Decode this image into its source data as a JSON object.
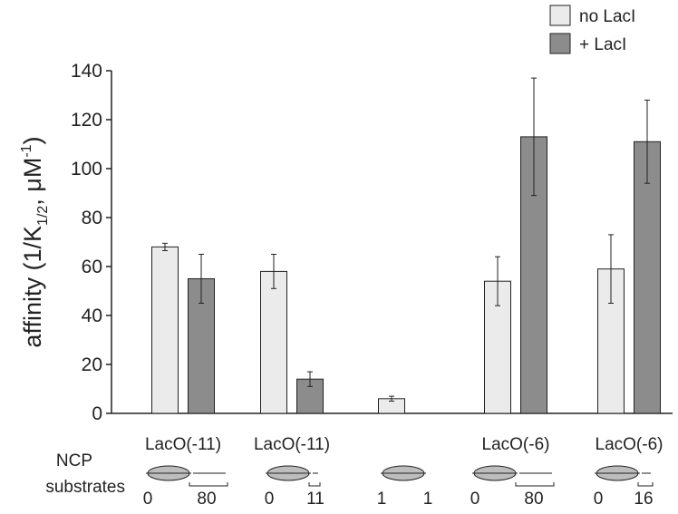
{
  "chart_data": {
    "type": "bar",
    "title": "",
    "xlabel": "",
    "ylabel": "affinity (1/K",
    "ylabel_sub": "1/2",
    "ylabel_mid": ", μM",
    "ylabel_sup": "-1",
    "ylabel_end": ")",
    "ylim": [
      0,
      140
    ],
    "yticks": [
      0,
      20,
      40,
      60,
      80,
      100,
      120,
      140
    ],
    "categories": [
      "LacO(-11)",
      "LacO(-11)",
      "",
      "LacO(-6)",
      "LacO(-6)"
    ],
    "series": [
      {
        "name": "no LacI",
        "color": "#ebebeb",
        "values": [
          68,
          58,
          6,
          54,
          59
        ],
        "errors": [
          1.5,
          7,
          1,
          10,
          14
        ]
      },
      {
        "name": "+ LacI",
        "color": "#8c8c8c",
        "values": [
          55,
          14,
          0,
          113,
          111
        ],
        "errors": [
          10,
          3,
          0,
          24,
          17
        ]
      }
    ],
    "missing": [
      [
        false,
        false,
        false,
        false,
        false
      ],
      [
        false,
        false,
        true,
        false,
        false
      ]
    ],
    "legend_position": "top-right",
    "substrates_label": [
      "NCP",
      "substrates"
    ],
    "substrate_numbers": [
      [
        "0",
        "80"
      ],
      [
        "0",
        "11"
      ],
      [
        "1",
        "1"
      ],
      [
        "0",
        "80"
      ],
      [
        "0",
        "16"
      ]
    ],
    "substrate_linker": [
      80,
      11,
      0,
      80,
      16
    ]
  },
  "colors": {
    "axis": "#222222",
    "nucleosome": "#bdbdbd"
  }
}
